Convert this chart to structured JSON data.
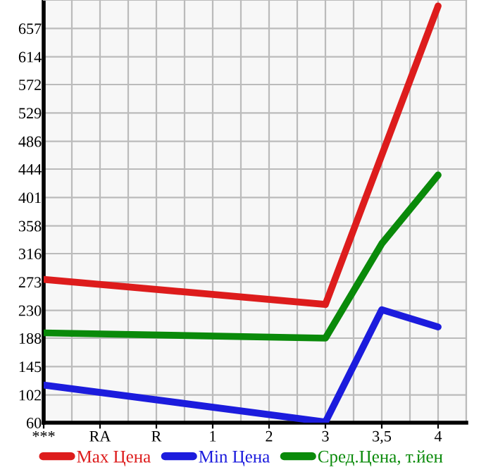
{
  "chart_data": {
    "type": "line",
    "categories": [
      "***",
      "RA",
      "R",
      "1",
      "2",
      "3",
      "3,5",
      "4"
    ],
    "series": [
      {
        "name": "Max Цена",
        "color": "#dd1c1c",
        "values": [
          277,
          null,
          null,
          null,
          null,
          239,
          null,
          691
        ]
      },
      {
        "name": "Min Цена",
        "color": "#1c1cdd",
        "values": [
          117,
          null,
          null,
          null,
          null,
          61,
          231,
          205
        ]
      },
      {
        "name": "Сред.Цена, т.йен",
        "color": "#0a8a0a",
        "values": [
          196,
          null,
          null,
          null,
          null,
          188,
          331,
          435
        ]
      }
    ],
    "ylim": [
      60,
      700
    ],
    "yticks": [
      60,
      102,
      145,
      188,
      230,
      273,
      316,
      358,
      401,
      444,
      486,
      529,
      572,
      614,
      657
    ],
    "grid": true,
    "legend": "bottom",
    "marker": "none",
    "line_style": "solid"
  }
}
